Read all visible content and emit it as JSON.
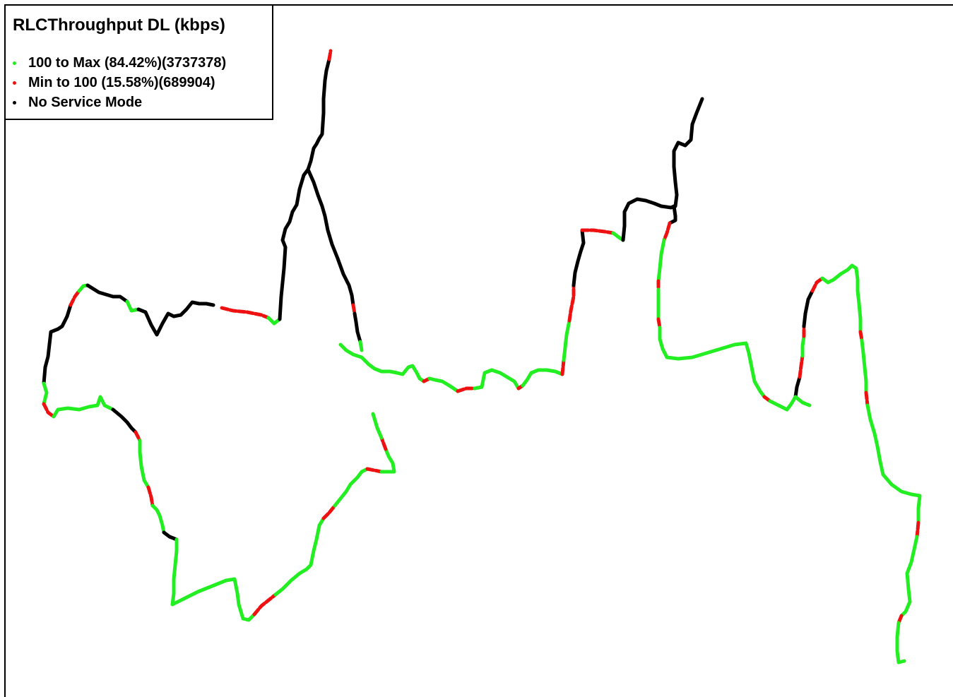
{
  "legend": {
    "title": "RLCThroughput DL (kbps)",
    "items": [
      {
        "label": "100 to Max (84.42%)(3737378)",
        "color": "#22ee22"
      },
      {
        "label": "Min to 100 (15.58%)(689904)",
        "color": "#ee1111"
      },
      {
        "label": "No Service Mode",
        "color": "#000000"
      }
    ]
  },
  "colors": {
    "good": "#22ee22",
    "poor": "#ee1111",
    "no_service": "#000000",
    "background": "#ffffff"
  }
}
